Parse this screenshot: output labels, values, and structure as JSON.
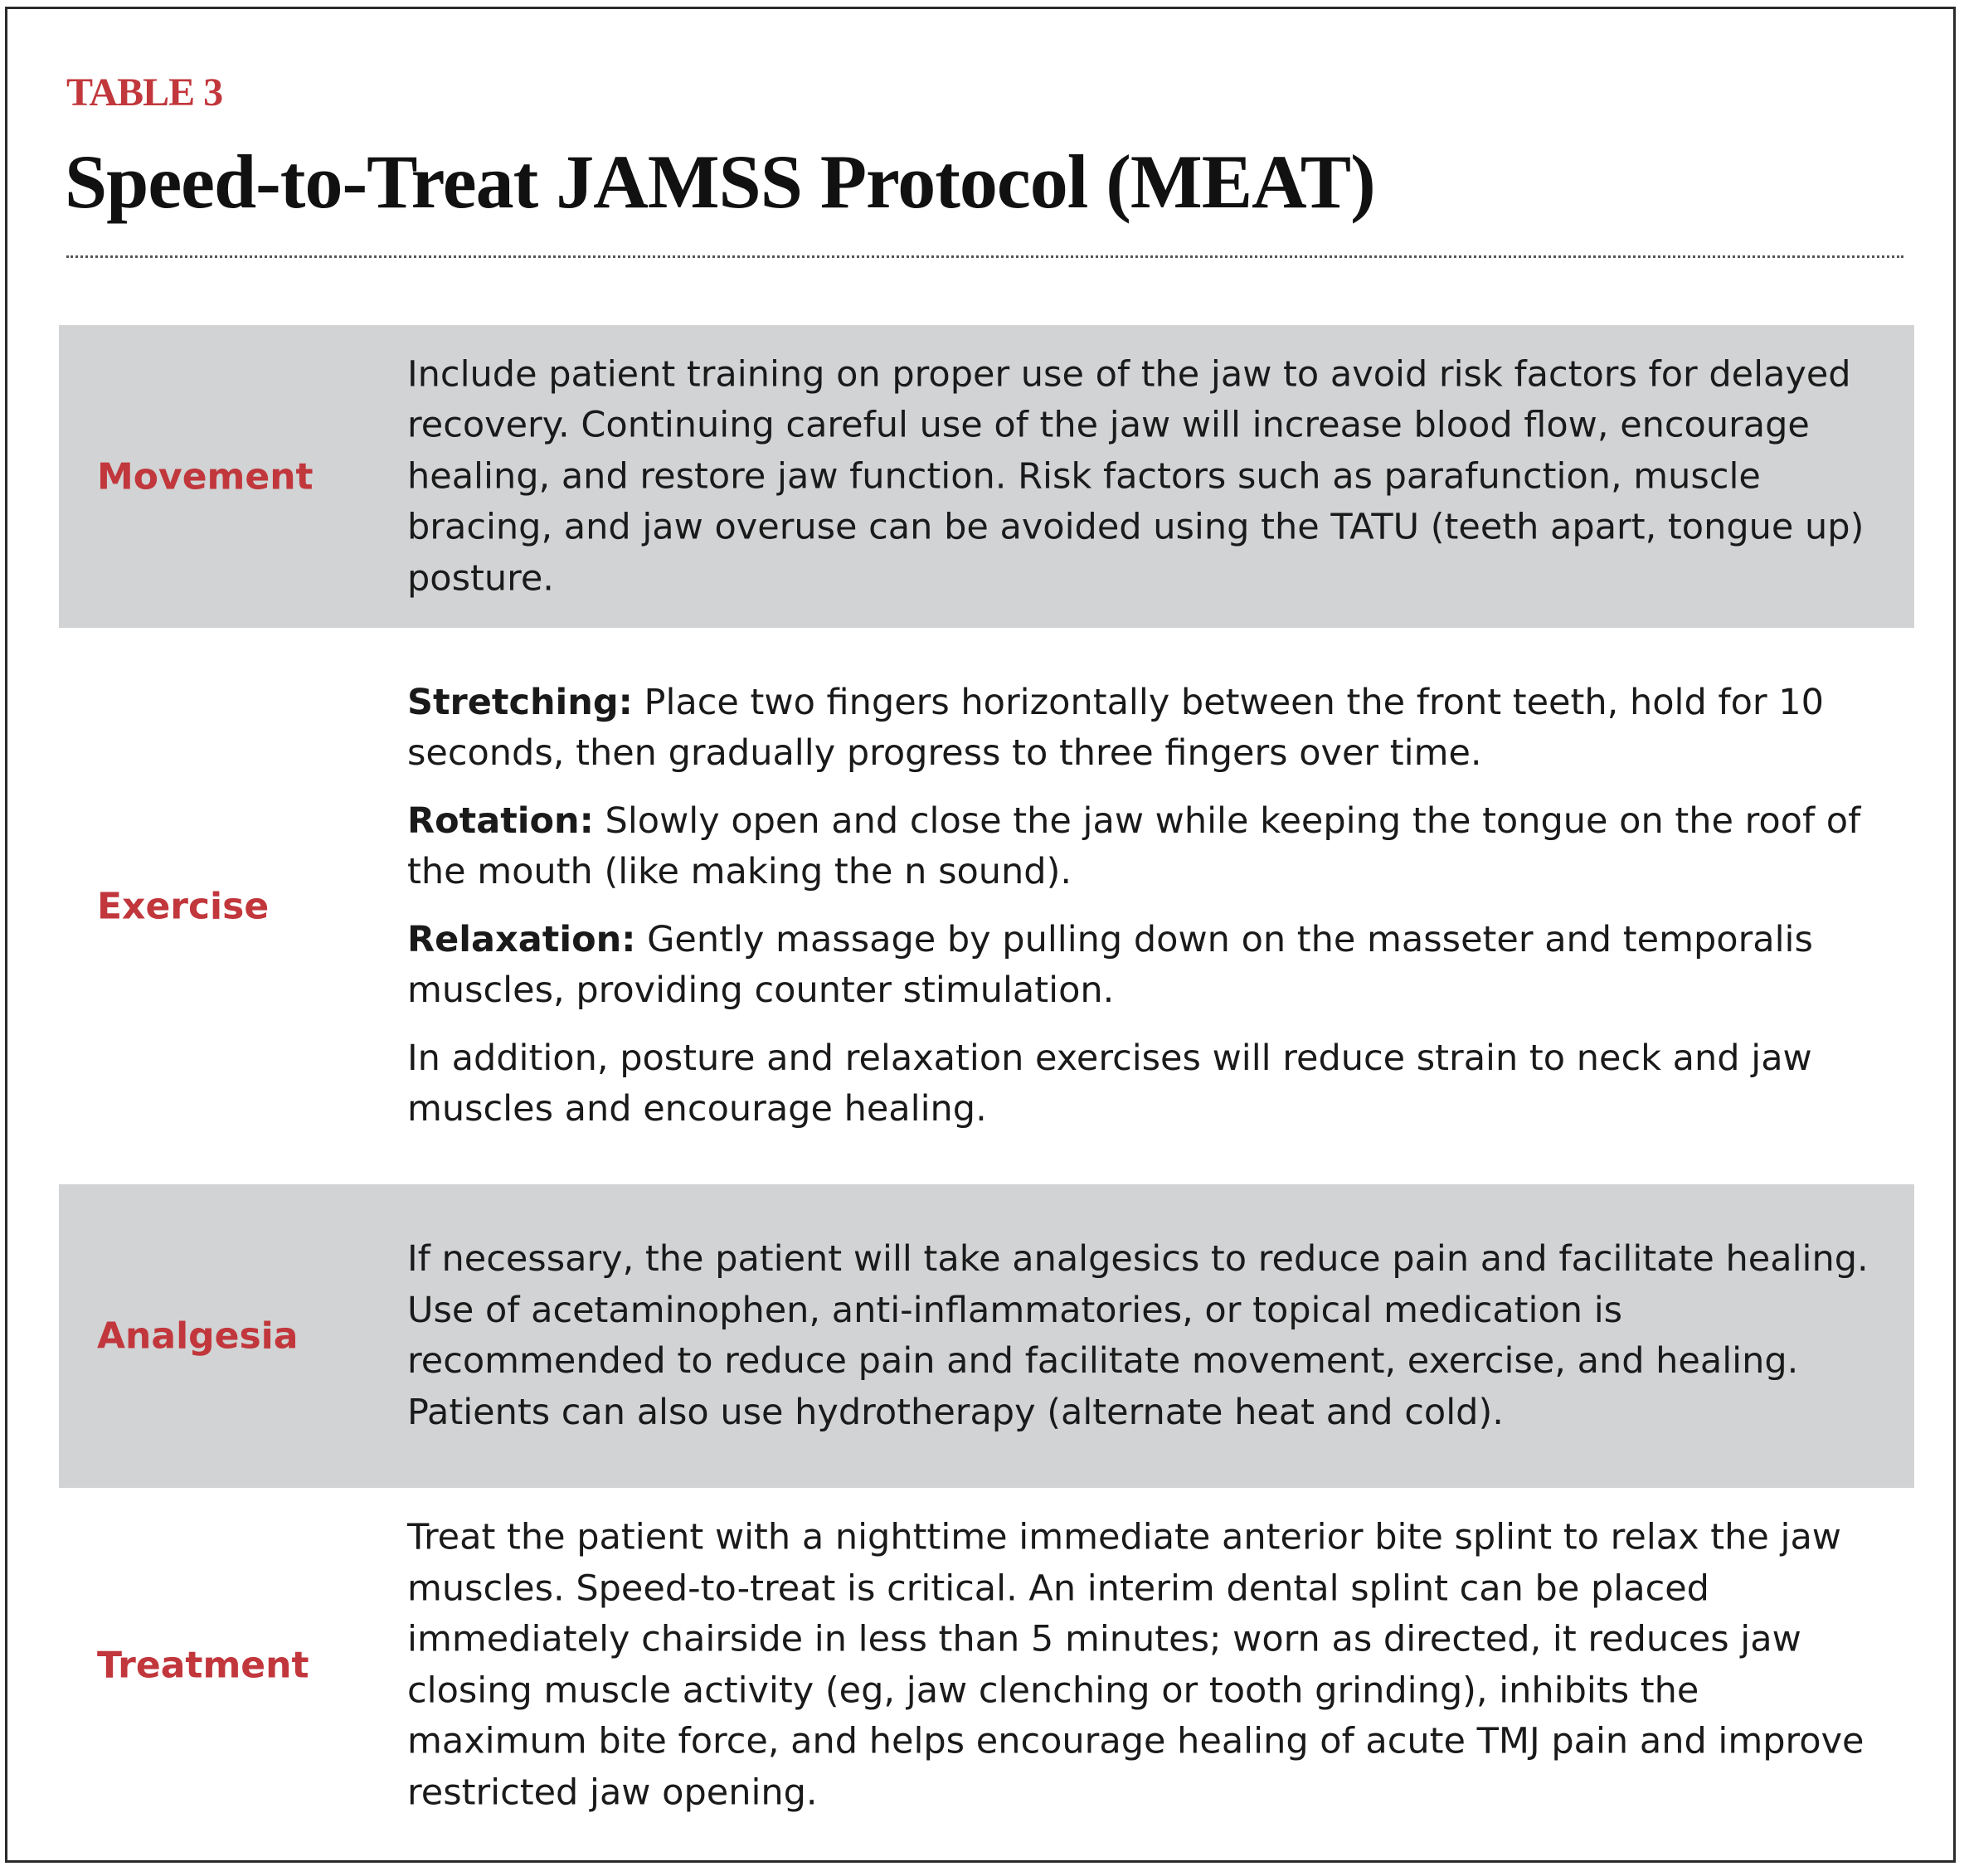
{
  "kicker": "TABLE 3",
  "title": "Speed-to-Treat JAMSS Protocol (MEAT)",
  "colors": {
    "accent": "#c1373c",
    "row_shade": "#d1d3d4",
    "text": "#1a1a1a"
  },
  "rows": [
    {
      "label": "Movement",
      "paragraphs": [
        {
          "lead": "",
          "text": "Include patient training on proper use of the jaw to avoid risk factors for delayed recovery. Continuing careful use of the jaw will increase blood flow, encourage healing, and restore jaw function. Risk factors such as parafunction, muscle bracing, and jaw overuse can be avoided using the TATU (teeth apart, tongue up) posture."
        }
      ]
    },
    {
      "label": "Exercise",
      "paragraphs": [
        {
          "lead": "Stretching:",
          "text": " Place two fingers horizontally between the front teeth, hold for 10 seconds, then gradually progress to three fingers over time."
        },
        {
          "lead": "Rotation:",
          "text": " Slowly open and close the jaw while keeping the tongue on the roof of the mouth (like making the n sound)."
        },
        {
          "lead": "Relaxation:",
          "text": " Gently massage by pulling down on the masseter and temporalis muscles, providing counter stimulation."
        },
        {
          "lead": "",
          "text": "In addition, posture and relaxation exercises will reduce strain to neck and jaw muscles and encourage healing."
        }
      ]
    },
    {
      "label": "Analgesia",
      "paragraphs": [
        {
          "lead": "",
          "text": "If necessary, the patient will take analgesics to reduce pain and facili­tate healing. Use of acetaminophen, anti-inflammatories, or topical medication is recommended to reduce pain and facilitate movement, exercise, and healing.  Patients can also use hydrotherapy (alternate heat and cold)."
        }
      ]
    },
    {
      "label": "Treatment",
      "paragraphs": [
        {
          "lead": "",
          "text": "Treat the patient with a nighttime immediate anterior bite splint to relax the jaw muscles. Speed-to-treat is critical. An interim dental splint can be placed immediately chairside in less than 5 minutes; worn as directed, it reduces jaw closing muscle activity (eg, jaw clenching or tooth grinding), inhibits the maximum bite force, and helps encourage healing of acute TMJ pain and improve restricted jaw opening."
        }
      ]
    }
  ]
}
